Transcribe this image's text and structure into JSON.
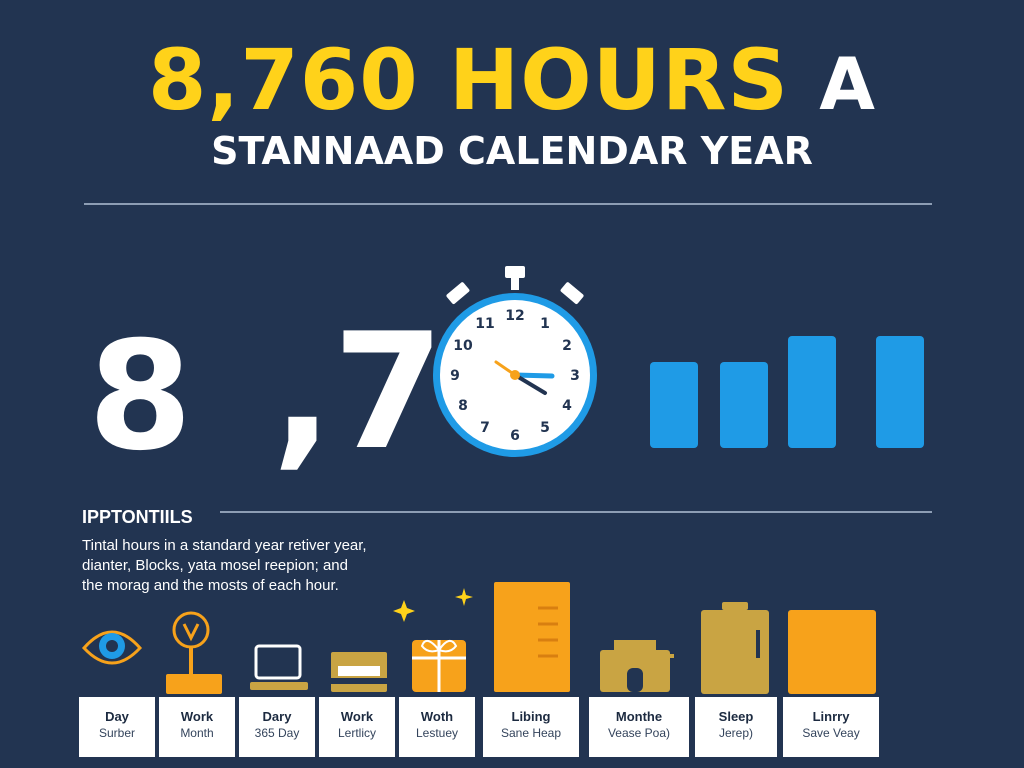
{
  "title": {
    "line1_yellow": "8,760  HOURS",
    "line1_white": "A",
    "line2": "STANNAAD CALENDAR YEAR"
  },
  "big_number": {
    "part1": "8",
    "part2": ",7"
  },
  "stopwatch": {
    "numbers": [
      "12",
      "1",
      "2",
      "3",
      "4",
      "5",
      "6",
      "7",
      "8",
      "9",
      "10",
      "11"
    ]
  },
  "section": {
    "heading": "IPPTONTIILS",
    "body_lines": [
      "Tintal hours in a standard year retiver year,",
      "dianter, Blocks, yata mosel reepion; and",
      "the morag and the mosts of each hour."
    ]
  },
  "cards": [
    {
      "title": "Day",
      "sub": "Surber"
    },
    {
      "title": "Work",
      "sub": "Month"
    },
    {
      "title": "Dary",
      "sub": "365 Day"
    },
    {
      "title": "Work",
      "sub": "Lertlicy"
    },
    {
      "title": "Woth",
      "sub": "Lestuey"
    },
    {
      "title": "Libing",
      "sub": "Sane Heap"
    },
    {
      "title": "Monthe",
      "sub": "Vease Poa)"
    },
    {
      "title": "Sleep",
      "sub": "Jerep)"
    },
    {
      "title": "Linrry",
      "sub": "Save Veay"
    }
  ],
  "colors": {
    "background": "#223451",
    "accent_yellow": "#ffd21a",
    "bar_blue": "#1f9be6",
    "icon_orange": "#f7a21b",
    "icon_gold": "#c9a443"
  }
}
